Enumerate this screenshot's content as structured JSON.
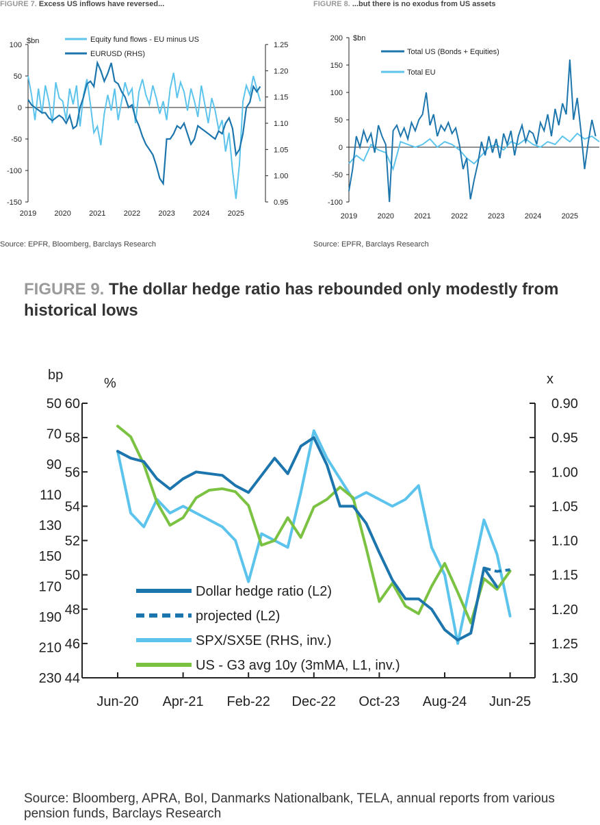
{
  "fig7": {
    "label": "FIGURE 7.",
    "title": "Excess US inflows have reversed...",
    "source": "Source: EPFR, Bloomberg, Barclays Research"
  },
  "fig8": {
    "label": "FIGURE 8.",
    "title": "...but there is no exodus from US assets",
    "source": "Source: EPFR, Barclays Research"
  },
  "fig9": {
    "label": "FIGURE 9.",
    "title": "The dollar hedge ratio has rebounded only modestly from historical lows",
    "source": "Source:  Bloomberg, APRA, BoI, Danmarks Nationalbank, TELA, annual reports from various pension funds, Barclays Research"
  },
  "colors": {
    "dark_blue": "#1c75ad",
    "light_blue": "#5cc4ec",
    "green": "#7cc242",
    "axis": "#222222"
  },
  "chart_data": [
    {
      "id": "fig7",
      "type": "line",
      "left_axis_label": "$bn",
      "ylim": [
        -150,
        100
      ],
      "yticks": [
        100,
        50,
        0,
        -50,
        -100,
        -150
      ],
      "y2lim": [
        0.95,
        1.25
      ],
      "y2ticks": [
        "1.25",
        "1.20",
        "1.15",
        "1.10",
        "1.05",
        "1.00",
        "0.95"
      ],
      "xlim": [
        2019,
        2025.85
      ],
      "xticks": [
        "2019",
        "2020",
        "2021",
        "2022",
        "2023",
        "2024",
        "2025"
      ],
      "legend_position": "top-center",
      "series": [
        {
          "name": "Equity fund flows - EU minus US",
          "axis": "left",
          "color": "#5cc4ec",
          "x": [
            2019.0,
            2019.1,
            2019.2,
            2019.3,
            2019.4,
            2019.5,
            2019.6,
            2019.7,
            2019.8,
            2019.9,
            2020.0,
            2020.1,
            2020.2,
            2020.3,
            2020.4,
            2020.5,
            2020.6,
            2020.7,
            2020.8,
            2020.9,
            2021.0,
            2021.1,
            2021.2,
            2021.3,
            2021.4,
            2021.5,
            2021.6,
            2021.7,
            2021.8,
            2021.9,
            2022.0,
            2022.1,
            2022.2,
            2022.3,
            2022.4,
            2022.5,
            2022.6,
            2022.7,
            2022.8,
            2022.9,
            2023.0,
            2023.1,
            2023.2,
            2023.3,
            2023.4,
            2023.5,
            2023.6,
            2023.7,
            2023.8,
            2023.9,
            2024.0,
            2024.1,
            2024.2,
            2024.3,
            2024.4,
            2024.5,
            2024.6,
            2024.7,
            2024.8,
            2024.9,
            2025.0,
            2025.1,
            2025.2,
            2025.3,
            2025.4,
            2025.5,
            2025.6,
            2025.7
          ],
          "values": [
            50,
            20,
            -20,
            30,
            -10,
            35,
            10,
            -25,
            40,
            15,
            10,
            -20,
            30,
            5,
            35,
            -30,
            20,
            45,
            5,
            -40,
            -30,
            -60,
            -10,
            20,
            -5,
            30,
            -20,
            10,
            40,
            20,
            30,
            -25,
            25,
            45,
            20,
            5,
            35,
            15,
            -10,
            10,
            -20,
            30,
            55,
            15,
            40,
            25,
            -5,
            30,
            10,
            -15,
            35,
            5,
            -25,
            15,
            -5,
            -35,
            -20,
            -70,
            -40,
            -100,
            -145,
            -90,
            10,
            35,
            20,
            50,
            30,
            10
          ]
        },
        {
          "name": "EURUSD (RHS)",
          "axis": "right",
          "color": "#1c75ad",
          "x": [
            2019.0,
            2019.1,
            2019.2,
            2019.3,
            2019.4,
            2019.5,
            2019.6,
            2019.7,
            2019.8,
            2019.9,
            2020.0,
            2020.1,
            2020.2,
            2020.3,
            2020.4,
            2020.5,
            2020.6,
            2020.7,
            2020.8,
            2020.9,
            2021.0,
            2021.1,
            2021.2,
            2021.3,
            2021.4,
            2021.5,
            2021.6,
            2021.7,
            2021.8,
            2021.9,
            2022.0,
            2022.1,
            2022.2,
            2022.3,
            2022.4,
            2022.5,
            2022.6,
            2022.7,
            2022.8,
            2022.9,
            2023.0,
            2023.1,
            2023.2,
            2023.3,
            2023.4,
            2023.5,
            2023.6,
            2023.7,
            2023.8,
            2023.9,
            2024.0,
            2024.1,
            2024.2,
            2024.3,
            2024.4,
            2024.5,
            2024.6,
            2024.7,
            2024.8,
            2024.9,
            2025.0,
            2025.1,
            2025.2,
            2025.3,
            2025.4,
            2025.5,
            2025.6,
            2025.7
          ],
          "values": [
            1.145,
            1.135,
            1.13,
            1.125,
            1.12,
            1.12,
            1.11,
            1.105,
            1.11,
            1.115,
            1.11,
            1.1,
            1.115,
            1.09,
            1.095,
            1.13,
            1.15,
            1.175,
            1.18,
            1.17,
            1.215,
            1.2,
            1.18,
            1.195,
            1.215,
            1.18,
            1.175,
            1.16,
            1.15,
            1.13,
            1.135,
            1.11,
            1.095,
            1.075,
            1.06,
            1.05,
            1.04,
            1.02,
            0.995,
            0.985,
            1.07,
            1.07,
            1.08,
            1.095,
            1.09,
            1.1,
            1.08,
            1.06,
            1.07,
            1.095,
            1.09,
            1.085,
            1.08,
            1.075,
            1.07,
            1.085,
            1.08,
            1.1,
            1.11,
            1.09,
            1.04,
            1.05,
            1.08,
            1.13,
            1.14,
            1.17,
            1.16,
            1.17
          ]
        }
      ]
    },
    {
      "id": "fig8",
      "type": "line",
      "left_axis_label": "$bn",
      "ylim": [
        -100,
        200
      ],
      "yticks": [
        200,
        150,
        100,
        50,
        0,
        -50,
        -100
      ],
      "xlim": [
        2019,
        2025.8
      ],
      "xticks": [
        "2019",
        "2020",
        "2021",
        "2022",
        "2023",
        "2024",
        "2025"
      ],
      "legend_position": "top-left",
      "series": [
        {
          "name": "Total US (Bonds + Equities)",
          "color": "#1c75ad",
          "x": [
            2019.0,
            2019.1,
            2019.2,
            2019.3,
            2019.4,
            2019.5,
            2019.6,
            2019.7,
            2019.8,
            2019.9,
            2020.0,
            2020.1,
            2020.2,
            2020.3,
            2020.4,
            2020.5,
            2020.6,
            2020.7,
            2020.8,
            2020.9,
            2021.0,
            2021.1,
            2021.2,
            2021.3,
            2021.4,
            2021.5,
            2021.6,
            2021.7,
            2021.8,
            2021.9,
            2022.0,
            2022.1,
            2022.2,
            2022.3,
            2022.4,
            2022.5,
            2022.6,
            2022.7,
            2022.8,
            2022.9,
            2023.0,
            2023.1,
            2023.2,
            2023.3,
            2023.4,
            2023.5,
            2023.6,
            2023.7,
            2023.8,
            2023.9,
            2024.0,
            2024.1,
            2024.2,
            2024.3,
            2024.4,
            2024.5,
            2024.6,
            2024.7,
            2024.8,
            2024.9,
            2025.0,
            2025.1,
            2025.2,
            2025.3,
            2025.4,
            2025.5,
            2025.6,
            2025.7
          ],
          "values": [
            -80,
            -40,
            20,
            0,
            30,
            10,
            25,
            -10,
            40,
            20,
            5,
            -100,
            30,
            40,
            20,
            35,
            15,
            45,
            30,
            50,
            60,
            100,
            40,
            60,
            20,
            40,
            30,
            45,
            25,
            35,
            5,
            -40,
            -20,
            -95,
            -60,
            -30,
            10,
            -15,
            20,
            -10,
            15,
            -20,
            25,
            5,
            30,
            -15,
            20,
            40,
            10,
            30,
            25,
            5,
            45,
            30,
            60,
            20,
            70,
            40,
            80,
            60,
            160,
            50,
            90,
            30,
            -40,
            10,
            50,
            20
          ]
        },
        {
          "name": "Total EU",
          "color": "#5cc4ec",
          "x": [
            2019.0,
            2019.2,
            2019.4,
            2019.6,
            2019.8,
            2020.0,
            2020.2,
            2020.4,
            2020.6,
            2020.8,
            2021.0,
            2021.2,
            2021.4,
            2021.6,
            2021.8,
            2022.0,
            2022.2,
            2022.4,
            2022.6,
            2022.8,
            2023.0,
            2023.2,
            2023.4,
            2023.6,
            2023.8,
            2024.0,
            2024.2,
            2024.4,
            2024.6,
            2024.8,
            2025.0,
            2025.2,
            2025.4,
            2025.6,
            2025.8
          ],
          "values": [
            -30,
            -15,
            -25,
            5,
            -5,
            -10,
            -40,
            10,
            5,
            0,
            5,
            15,
            0,
            10,
            5,
            -5,
            -20,
            -30,
            -15,
            0,
            5,
            -5,
            10,
            5,
            15,
            5,
            0,
            10,
            5,
            20,
            10,
            25,
            15,
            20,
            10
          ]
        }
      ]
    },
    {
      "id": "fig9",
      "type": "line",
      "ylim_bp": [
        50,
        230
      ],
      "yticks_bp": [
        "50",
        "70",
        "90",
        "110",
        "130",
        "150",
        "170",
        "190",
        "210",
        "230"
      ],
      "ylim_pct": [
        60,
        44
      ],
      "yticks_pct": [
        "60",
        "58",
        "56",
        "54",
        "52",
        "50",
        "48",
        "46",
        "44"
      ],
      "ylim_x": [
        0.9,
        1.3
      ],
      "yticks_x": [
        "0.90",
        "0.95",
        "1.00",
        "1.05",
        "1.10",
        "1.15",
        "1.20",
        "1.25",
        "1.30"
      ],
      "axis_unit_bp": "bp",
      "axis_unit_pct": "%",
      "axis_unit_x": "x",
      "xticks": [
        "Jun-20",
        "Apr-21",
        "Feb-22",
        "Dec-22",
        "Oct-23",
        "Aug-24",
        "Jun-25"
      ],
      "legend_position": "bottom-left",
      "series": [
        {
          "name": "Dollar hedge ratio (L2)",
          "axis": "pct",
          "color": "#1c75ad",
          "style": "solid",
          "x": [
            "Jun-20",
            "Aug-20",
            "Oct-20",
            "Dec-20",
            "Feb-21",
            "Apr-21",
            "Jun-21",
            "Aug-21",
            "Oct-21",
            "Dec-21",
            "Feb-22",
            "Apr-22",
            "Jun-22",
            "Aug-22",
            "Oct-22",
            "Dec-22",
            "Feb-23",
            "Apr-23",
            "Jun-23",
            "Aug-23",
            "Oct-23",
            "Dec-23",
            "Feb-24",
            "Apr-24",
            "Jun-24",
            "Aug-24",
            "Oct-24",
            "Dec-24",
            "Feb-25",
            "Apr-25"
          ],
          "values": [
            57.2,
            56.8,
            56.6,
            55.6,
            55.0,
            55.6,
            56.0,
            55.9,
            55.8,
            55.2,
            54.8,
            55.8,
            56.8,
            55.9,
            57.5,
            58.0,
            56.4,
            54.0,
            54.0,
            53.0,
            51.3,
            49.7,
            48.6,
            48.6,
            48.0,
            46.8,
            46.2,
            46.6,
            50.4,
            49.3
          ]
        },
        {
          "name": "projected (L2)",
          "axis": "pct",
          "color": "#1c75ad",
          "style": "dashed",
          "x": [
            "Feb-25",
            "Apr-25",
            "Jun-25"
          ],
          "values": [
            50.4,
            50.2,
            50.3
          ]
        },
        {
          "name": "SPX/SX5E (RHS, inv.)",
          "axis": "x",
          "color": "#5cc4ec",
          "style": "solid",
          "x": [
            "Jun-20",
            "Aug-20",
            "Oct-20",
            "Dec-20",
            "Feb-21",
            "Apr-21",
            "Jun-21",
            "Aug-21",
            "Oct-21",
            "Dec-21",
            "Feb-22",
            "Apr-22",
            "Jun-22",
            "Aug-22",
            "Oct-22",
            "Dec-22",
            "Feb-23",
            "Apr-23",
            "Jun-23",
            "Aug-23",
            "Oct-23",
            "Dec-23",
            "Feb-24",
            "Apr-24",
            "Jun-24",
            "Aug-24",
            "Oct-24",
            "Dec-24",
            "Feb-25",
            "Apr-25",
            "Jun-25"
          ],
          "values": [
            0.97,
            1.06,
            1.08,
            1.04,
            1.06,
            1.05,
            1.06,
            1.07,
            1.08,
            1.1,
            1.16,
            1.09,
            1.1,
            1.11,
            1.03,
            0.94,
            0.98,
            1.01,
            1.04,
            1.03,
            1.04,
            1.05,
            1.04,
            1.02,
            1.11,
            1.15,
            1.25,
            1.16,
            1.07,
            1.12,
            1.21
          ]
        },
        {
          "name": "US - G3 avg 10y (3mMA, L1, inv.)",
          "axis": "bp",
          "color": "#7cc242",
          "style": "solid",
          "x": [
            "Jun-20",
            "Aug-20",
            "Oct-20",
            "Dec-20",
            "Feb-21",
            "Apr-21",
            "Jun-21",
            "Aug-21",
            "Oct-21",
            "Dec-21",
            "Feb-22",
            "Apr-22",
            "Jun-22",
            "Aug-22",
            "Oct-22",
            "Dec-22",
            "Feb-23",
            "Apr-23",
            "Jun-23",
            "Aug-23",
            "Oct-23",
            "Dec-23",
            "Feb-24",
            "Apr-24",
            "Jun-24",
            "Aug-24",
            "Oct-24",
            "Dec-24",
            "Feb-25",
            "Apr-25",
            "Jun-25"
          ],
          "values": [
            65,
            72,
            90,
            115,
            130,
            125,
            112,
            107,
            106,
            108,
            117,
            143,
            140,
            125,
            138,
            118,
            113,
            105,
            112,
            145,
            180,
            168,
            183,
            188,
            170,
            155,
            174,
            194,
            165,
            172,
            160
          ]
        }
      ]
    }
  ]
}
